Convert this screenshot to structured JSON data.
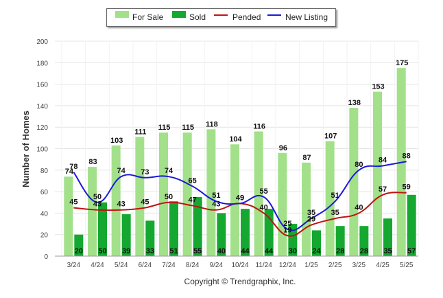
{
  "chart_data": {
    "type": "bar",
    "categories": [
      "3/24",
      "4/24",
      "5/24",
      "6/24",
      "7/24",
      "8/24",
      "9/24",
      "10/24",
      "11/24",
      "12/24",
      "1/25",
      "2/25",
      "3/25",
      "4/25",
      "5/25"
    ],
    "series": [
      {
        "name": "For Sale",
        "kind": "bar",
        "color": "#a3e08a",
        "values": [
          74,
          83,
          103,
          111,
          115,
          115,
          118,
          104,
          116,
          96,
          87,
          107,
          138,
          153,
          175
        ]
      },
      {
        "name": "Sold",
        "kind": "bar",
        "color": "#14a830",
        "values": [
          20,
          50,
          39,
          33,
          51,
          55,
          40,
          44,
          44,
          30,
          24,
          28,
          28,
          35,
          57
        ]
      },
      {
        "name": "Pended",
        "kind": "line",
        "color": "#c0130f",
        "values": [
          45,
          43,
          43,
          45,
          50,
          47,
          43,
          49,
          40,
          19,
          29,
          35,
          40,
          57,
          59
        ]
      },
      {
        "name": "New Listing",
        "kind": "line",
        "color": "#1a1ad8",
        "values": [
          78,
          50,
          74,
          73,
          74,
          65,
          51,
          49,
          55,
          25,
          35,
          51,
          80,
          84,
          88
        ]
      }
    ],
    "xlabel": "",
    "ylabel": "Number of Homes",
    "ylim": [
      0,
      200
    ],
    "yticks": [
      0,
      20,
      40,
      60,
      80,
      100,
      120,
      140,
      160,
      180,
      200
    ],
    "grid": true,
    "legend": "top-center"
  },
  "legend": {
    "for_sale": "For Sale",
    "sold": "Sold",
    "pended": "Pended",
    "new_listing": "New Listing"
  },
  "footer": {
    "copyright": "Copyright © Trendgraphix, Inc."
  }
}
